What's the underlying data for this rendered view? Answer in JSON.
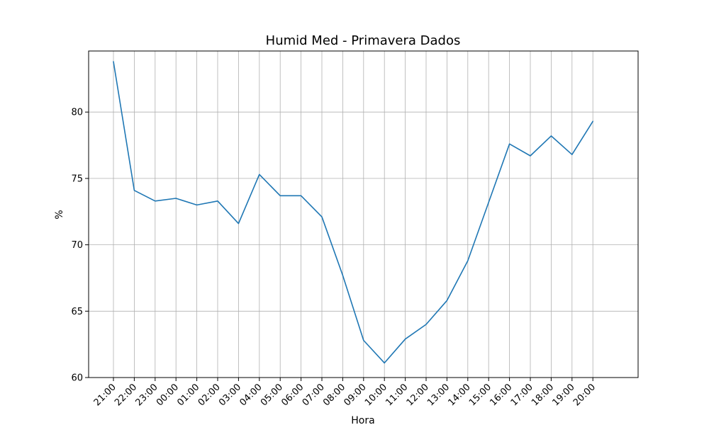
{
  "chart_data": {
    "type": "line",
    "title": "Humid Med - Primavera Dados",
    "xlabel": "Hora",
    "ylabel": "%",
    "categories": [
      "21:00",
      "22:00",
      "23:00",
      "00:00",
      "01:00",
      "02:00",
      "03:00",
      "04:00",
      "05:00",
      "06:00",
      "07:00",
      "08:00",
      "09:00",
      "10:00",
      "11:00",
      "12:00",
      "13:00",
      "14:00",
      "15:00",
      "16:00",
      "17:00",
      "18:00",
      "19:00",
      "20:00"
    ],
    "x_ticks": [
      "21:00",
      "22:00",
      "23:00",
      "00:00",
      "01:00",
      "02:00",
      "03:00",
      "04:00",
      "05:00",
      "06:00",
      "07:00",
      "08:00",
      "09:00",
      "10:00",
      "11:00",
      "12:00",
      "13:00",
      "14:00",
      "15:00",
      "16:00",
      "17:00",
      "18:00",
      "19:00",
      "20:00"
    ],
    "y_ticks": [
      60,
      65,
      70,
      75,
      80
    ],
    "ylim": [
      60,
      84.6
    ],
    "grid": true,
    "series": [
      {
        "color": "#1f77b4",
        "values": [
          83.8,
          74.1,
          73.3,
          73.5,
          73.0,
          73.3,
          71.6,
          75.3,
          73.7,
          73.7,
          72.1,
          67.7,
          62.8,
          61.1,
          62.9,
          64.0,
          65.8,
          68.8,
          73.2,
          77.6,
          76.7,
          78.2,
          76.8,
          79.3
        ]
      }
    ]
  }
}
